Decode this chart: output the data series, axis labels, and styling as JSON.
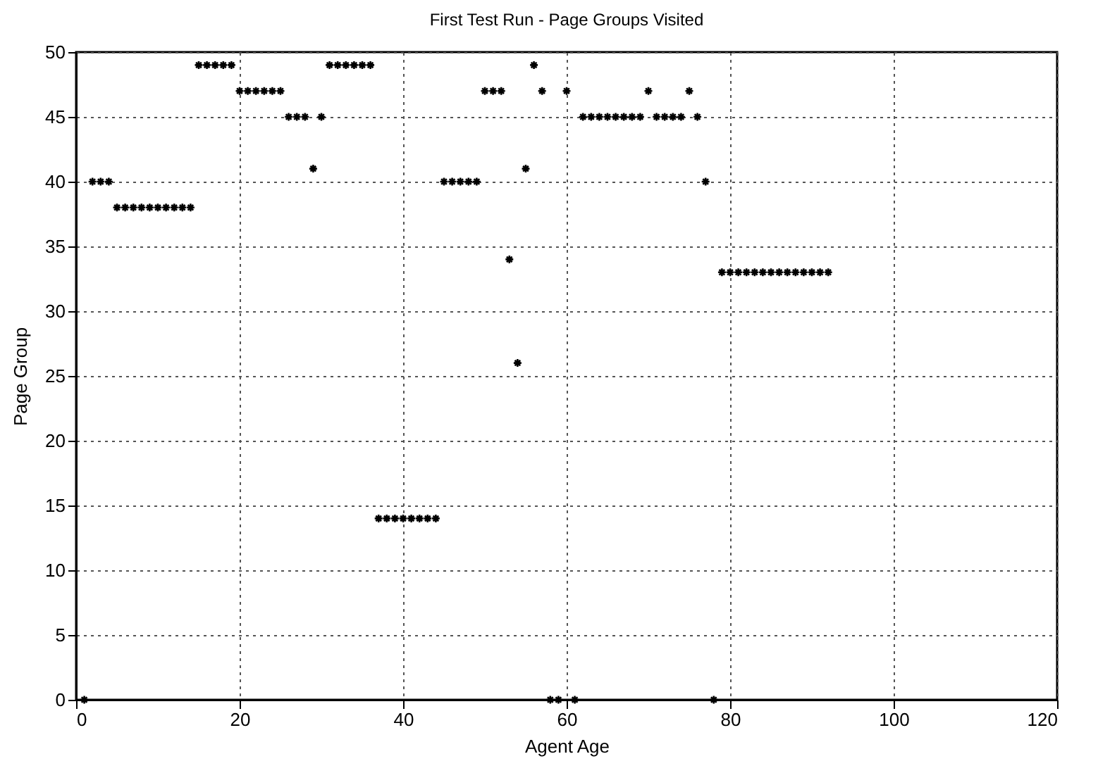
{
  "chart_data": {
    "type": "scatter",
    "title": "First Test Run - Page Groups Visited",
    "xlabel": "Agent Age",
    "ylabel": "Page Group",
    "x": [
      1,
      2,
      3,
      4,
      5,
      6,
      7,
      8,
      9,
      10,
      11,
      12,
      13,
      14,
      15,
      16,
      17,
      18,
      19,
      20,
      21,
      22,
      23,
      24,
      25,
      26,
      27,
      28,
      29,
      30,
      31,
      32,
      33,
      34,
      35,
      36,
      37,
      38,
      39,
      40,
      41,
      42,
      43,
      44,
      45,
      46,
      47,
      48,
      49,
      50,
      51,
      52,
      53,
      54,
      55,
      56,
      57,
      58,
      59,
      60,
      61,
      62,
      63,
      64,
      65,
      66,
      67,
      68,
      69,
      70,
      71,
      72,
      73,
      74,
      75,
      76,
      77,
      78,
      79,
      80,
      81,
      82,
      83,
      84,
      85,
      86,
      87,
      88,
      89,
      90,
      91,
      92
    ],
    "series": [
      {
        "color": "#000000",
        "values": [
          0,
          40,
          40,
          40,
          38,
          38,
          38,
          38,
          38,
          38,
          38,
          38,
          38,
          38,
          49,
          49,
          49,
          49,
          49,
          47,
          47,
          47,
          47,
          47,
          47,
          45,
          45,
          45,
          41,
          45,
          49,
          49,
          49,
          49,
          49,
          49,
          14,
          14,
          14,
          14,
          14,
          14,
          14,
          14,
          40,
          40,
          40,
          40,
          40,
          47,
          47,
          47,
          34,
          26,
          41,
          49,
          47,
          0,
          0,
          47,
          0,
          45,
          45,
          45,
          45,
          45,
          45,
          45,
          45,
          47,
          45,
          45,
          45,
          45,
          47,
          45,
          40,
          0,
          33,
          33,
          33,
          33,
          33,
          33,
          33,
          33,
          33,
          33,
          33,
          33,
          33,
          33
        ]
      }
    ],
    "xlim": [
      0,
      120
    ],
    "xticks": [
      0,
      20,
      40,
      60,
      80,
      100,
      120
    ],
    "ylim": [
      0,
      50
    ],
    "yticks": [
      0,
      5,
      10,
      15,
      20,
      25,
      30,
      35,
      40,
      45,
      50
    ],
    "grid": true,
    "marker": "cross"
  }
}
